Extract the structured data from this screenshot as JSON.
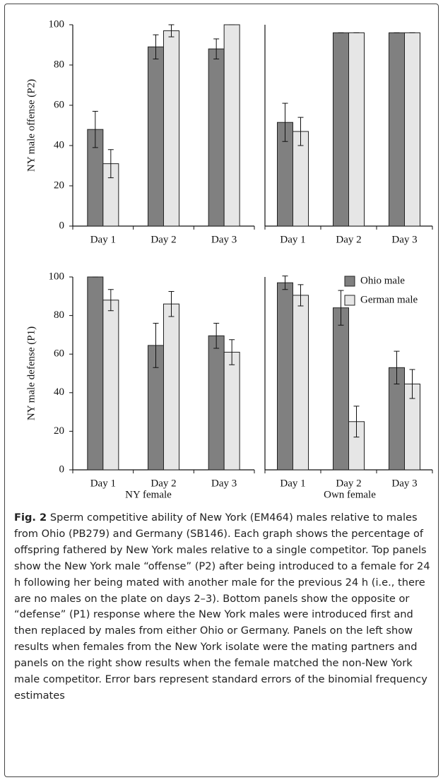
{
  "chart_data": [
    {
      "type": "bar",
      "ylabel": "NY male offense (P2)",
      "categories": [
        "Day 1",
        "Day 2",
        "Day 3"
      ],
      "ylim": [
        0,
        100
      ],
      "yticks": [
        0,
        20,
        40,
        60,
        80,
        100
      ],
      "series": [
        {
          "color": "#808080",
          "values": [
            48,
            89,
            88
          ],
          "errors": [
            9,
            6,
            5
          ]
        },
        {
          "color": "#e6e6e6",
          "values": [
            31,
            97,
            100
          ],
          "errors": [
            7,
            3,
            0
          ]
        }
      ]
    },
    {
      "type": "bar",
      "categories": [
        "Day 1",
        "Day 2",
        "Day 3"
      ],
      "ylim": [
        0,
        100
      ],
      "series": [
        {
          "color": "#808080",
          "values": [
            51.5,
            96,
            96
          ],
          "errors": [
            9.5,
            0,
            0
          ]
        },
        {
          "color": "#e6e6e6",
          "values": [
            47,
            96,
            96
          ],
          "errors": [
            7,
            0,
            0
          ]
        }
      ]
    },
    {
      "type": "bar",
      "ylabel": "NY male defense (P1)",
      "categories": [
        "Day 1",
        "Day 2",
        "Day 3"
      ],
      "ylim": [
        0,
        100
      ],
      "yticks": [
        0,
        20,
        40,
        60,
        80,
        100
      ],
      "series": [
        {
          "color": "#808080",
          "values": [
            100,
            64.5,
            69.5
          ],
          "errors": [
            0,
            11.5,
            6.5
          ]
        },
        {
          "color": "#e6e6e6",
          "values": [
            88,
            86,
            61
          ],
          "errors": [
            5.5,
            6.5,
            6.5
          ]
        }
      ]
    },
    {
      "type": "bar",
      "categories": [
        "Day 1",
        "Day 2",
        "Day 3"
      ],
      "ylim": [
        0,
        100
      ],
      "legend": "upper right",
      "series": [
        {
          "name": "Ohio male",
          "color": "#808080",
          "values": [
            97,
            84,
            53
          ],
          "errors": [
            3.5,
            9,
            8.5
          ]
        },
        {
          "name": "German male",
          "color": "#e6e6e6",
          "values": [
            90.5,
            25,
            44.5
          ],
          "errors": [
            5.5,
            8,
            7.5
          ]
        }
      ]
    }
  ],
  "column_labels": [
    "NY female",
    "Own female"
  ],
  "caption": {
    "label": "Fig. 2",
    "text": " Sperm competitive ability of New York (EM464) males relative to males from Ohio (PB279) and Germany (SB146). Each graph shows the percentage of offspring fathered by New York males relative to a single competitor. Top panels show the New York male “offense” (P2) after being introduced to a female for 24 h following her being mated with another male for the previous 24 h (i.e., there are no males on the plate on days 2–3). Bottom panels show the opposite or “defense” (P1) response where the New York males were introduced first and then replaced by males from either Ohio or Germany. Panels on the left show results when females from the New York isolate were the mating partners and panels on the right show results when the female matched the non-New York male competitor. Error bars represent standard errors of the binomial frequency estimates"
  }
}
